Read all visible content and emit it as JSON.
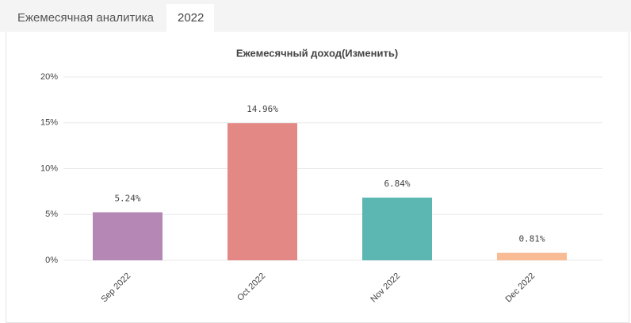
{
  "tabs": [
    "Ежемесячная аналитика",
    "2022"
  ],
  "chart_data": {
    "type": "bar",
    "title": "Ежемесячный доход(Изменить)",
    "categories": [
      "Sep 2022",
      "Oct 2022",
      "Nov 2022",
      "Dec 2022"
    ],
    "values": [
      5.24,
      14.96,
      6.84,
      0.81
    ],
    "value_labels": [
      "5.24%",
      "14.96%",
      "6.84%",
      "0.81%"
    ],
    "colors": [
      "#b487b5",
      "#e38885",
      "#5cb6b2",
      "#f9bb94"
    ],
    "ylim": [
      0,
      20
    ],
    "yticks": [
      {
        "value": 0,
        "label": "0%"
      },
      {
        "value": 5,
        "label": "5%"
      },
      {
        "value": 10,
        "label": "10%"
      },
      {
        "value": 15,
        "label": "15%"
      },
      {
        "value": 20,
        "label": "20%"
      }
    ],
    "grid": true
  }
}
